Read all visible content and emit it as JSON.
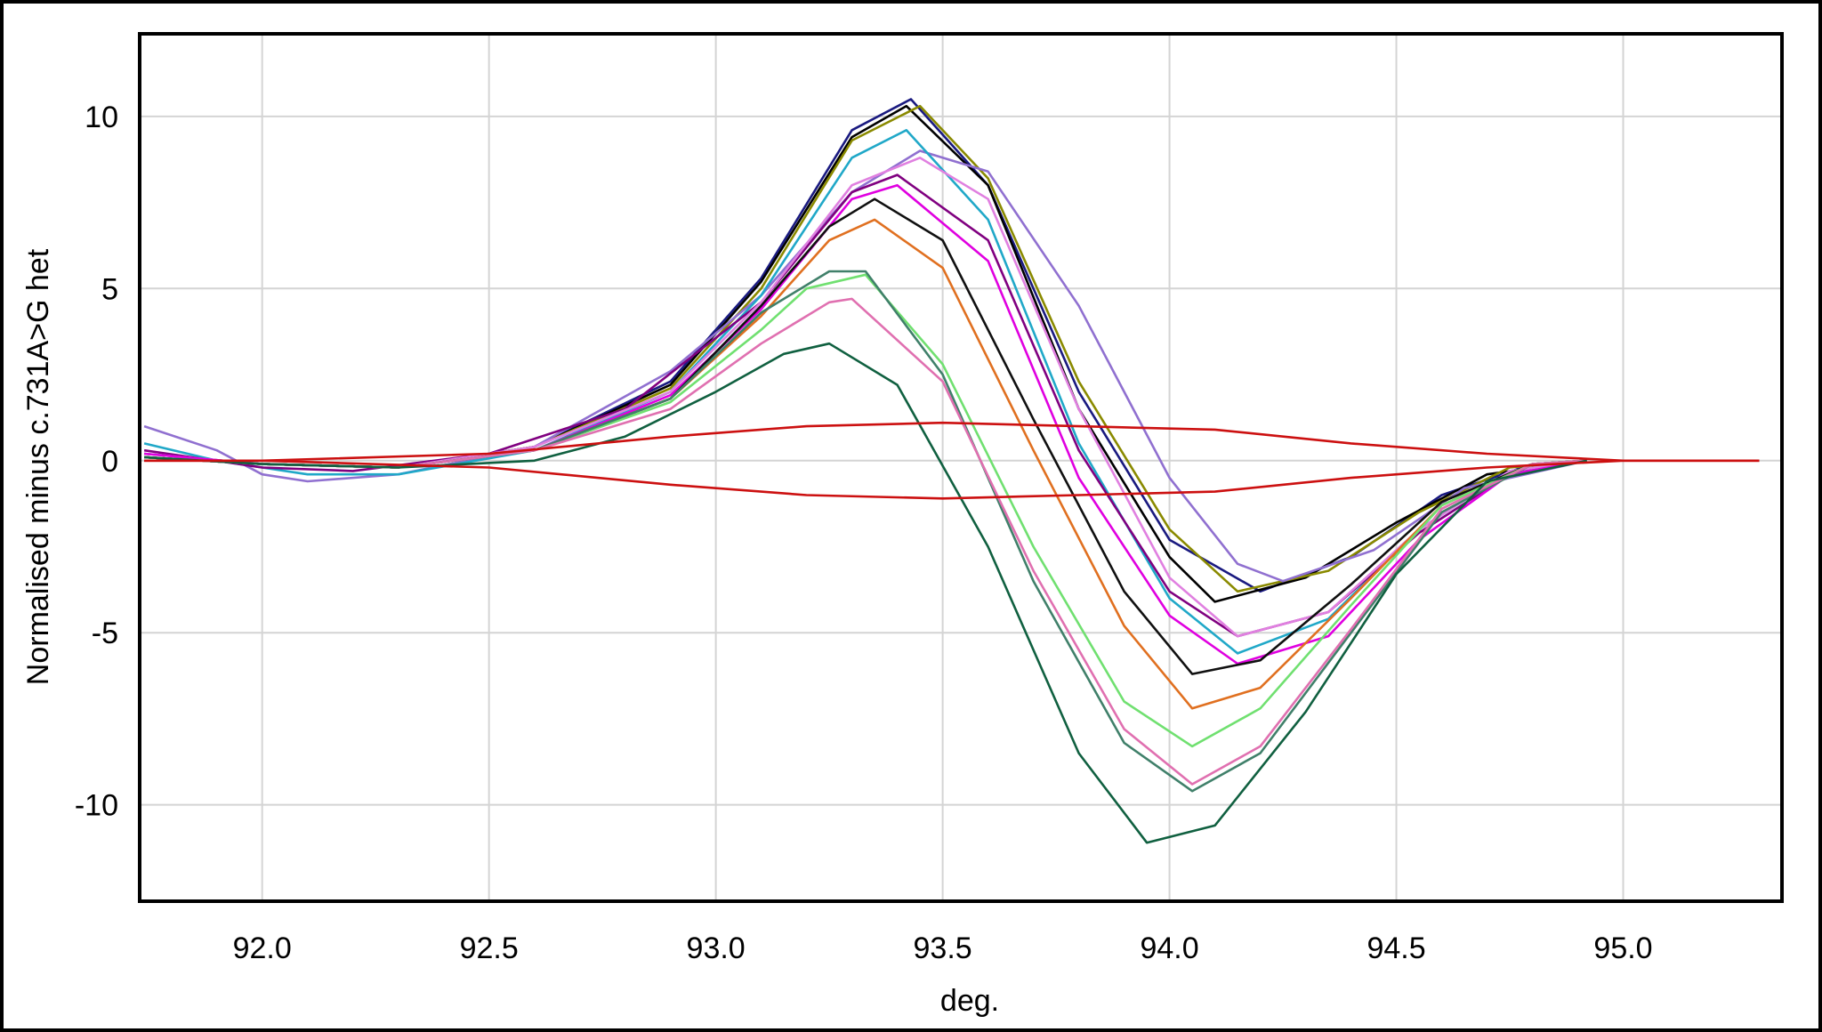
{
  "chart_data": {
    "type": "line",
    "xlabel": "deg.",
    "ylabel": "Normalised minus c.731A>G het",
    "xlim": [
      91.73,
      95.35
    ],
    "ylim": [
      -12.8,
      12.4
    ],
    "xticks": [
      92.0,
      92.5,
      93.0,
      93.5,
      94.0,
      94.5,
      95.0
    ],
    "xtick_labels": [
      "92.0",
      "92.5",
      "93.0",
      "93.5",
      "94.0",
      "94.5",
      "95.0"
    ],
    "yticks": [
      10,
      5,
      0,
      -5,
      -10
    ],
    "ytick_labels": [
      "10",
      "5",
      "0",
      "-5",
      "-10"
    ],
    "grid": true,
    "legend": "none",
    "series": [
      {
        "color": "#1a1a80",
        "points": [
          [
            91.74,
            0.2
          ],
          [
            92.0,
            -0.1
          ],
          [
            92.3,
            -0.2
          ],
          [
            92.6,
            0.4
          ],
          [
            92.9,
            2.3
          ],
          [
            93.1,
            5.3
          ],
          [
            93.3,
            9.6
          ],
          [
            93.43,
            10.5
          ],
          [
            93.6,
            8.0
          ],
          [
            93.8,
            2.0
          ],
          [
            94.0,
            -2.3
          ],
          [
            94.2,
            -3.8
          ],
          [
            94.4,
            -2.8
          ],
          [
            94.6,
            -1.0
          ],
          [
            94.8,
            -0.1
          ],
          [
            94.92,
            0.0
          ]
        ]
      },
      {
        "color": "#000000",
        "points": [
          [
            91.74,
            0.1
          ],
          [
            92.0,
            -0.1
          ],
          [
            92.3,
            -0.2
          ],
          [
            92.6,
            0.4
          ],
          [
            92.9,
            2.2
          ],
          [
            93.1,
            5.2
          ],
          [
            93.3,
            9.4
          ],
          [
            93.42,
            10.3
          ],
          [
            93.6,
            8.0
          ],
          [
            93.8,
            1.5
          ],
          [
            94.0,
            -2.8
          ],
          [
            94.1,
            -4.1
          ],
          [
            94.3,
            -3.4
          ],
          [
            94.5,
            -1.8
          ],
          [
            94.7,
            -0.4
          ],
          [
            94.92,
            0.0
          ]
        ]
      },
      {
        "color": "#8a8a00",
        "points": [
          [
            91.74,
            0.1
          ],
          [
            92.0,
            -0.1
          ],
          [
            92.3,
            -0.2
          ],
          [
            92.6,
            0.4
          ],
          [
            92.9,
            2.1
          ],
          [
            93.1,
            5.0
          ],
          [
            93.3,
            9.3
          ],
          [
            93.45,
            10.3
          ],
          [
            93.6,
            8.2
          ],
          [
            93.8,
            2.3
          ],
          [
            94.0,
            -2.0
          ],
          [
            94.15,
            -3.8
          ],
          [
            94.35,
            -3.2
          ],
          [
            94.55,
            -1.5
          ],
          [
            94.75,
            -0.2
          ],
          [
            94.92,
            0.0
          ]
        ]
      },
      {
        "color": "#9070d0",
        "points": [
          [
            91.74,
            1.0
          ],
          [
            91.9,
            0.3
          ],
          [
            92.0,
            -0.4
          ],
          [
            92.1,
            -0.6
          ],
          [
            92.3,
            -0.4
          ],
          [
            92.6,
            0.4
          ],
          [
            92.9,
            2.6
          ],
          [
            93.1,
            4.8
          ],
          [
            93.3,
            7.8
          ],
          [
            93.45,
            9.0
          ],
          [
            93.6,
            8.4
          ],
          [
            93.8,
            4.5
          ],
          [
            94.0,
            -0.5
          ],
          [
            94.15,
            -3.0
          ],
          [
            94.25,
            -3.5
          ],
          [
            94.45,
            -2.6
          ],
          [
            94.65,
            -0.8
          ],
          [
            94.92,
            0.0
          ]
        ]
      },
      {
        "color": "#20a8c8",
        "points": [
          [
            91.74,
            0.5
          ],
          [
            91.9,
            0.0
          ],
          [
            92.1,
            -0.4
          ],
          [
            92.3,
            -0.4
          ],
          [
            92.6,
            0.3
          ],
          [
            92.9,
            2.0
          ],
          [
            93.1,
            4.8
          ],
          [
            93.3,
            8.8
          ],
          [
            93.42,
            9.6
          ],
          [
            93.6,
            7.0
          ],
          [
            93.8,
            0.5
          ],
          [
            94.0,
            -4.0
          ],
          [
            94.15,
            -5.6
          ],
          [
            94.35,
            -4.6
          ],
          [
            94.55,
            -2.0
          ],
          [
            94.75,
            -0.3
          ],
          [
            94.92,
            0.0
          ]
        ]
      },
      {
        "color": "#800080",
        "points": [
          [
            91.74,
            0.3
          ],
          [
            92.0,
            -0.2
          ],
          [
            92.2,
            -0.3
          ],
          [
            92.5,
            0.2
          ],
          [
            92.8,
            1.5
          ],
          [
            93.1,
            4.6
          ],
          [
            93.3,
            7.8
          ],
          [
            93.4,
            8.3
          ],
          [
            93.6,
            6.4
          ],
          [
            93.8,
            0.3
          ],
          [
            94.0,
            -3.8
          ],
          [
            94.15,
            -5.1
          ],
          [
            94.35,
            -4.4
          ],
          [
            94.55,
            -2.1
          ],
          [
            94.75,
            -0.4
          ],
          [
            94.92,
            0.0
          ]
        ]
      },
      {
        "color": "#e080e0",
        "points": [
          [
            91.74,
            0.2
          ],
          [
            92.0,
            -0.1
          ],
          [
            92.3,
            -0.2
          ],
          [
            92.6,
            0.4
          ],
          [
            92.9,
            2.0
          ],
          [
            93.1,
            4.6
          ],
          [
            93.3,
            8.0
          ],
          [
            93.45,
            8.8
          ],
          [
            93.6,
            7.6
          ],
          [
            93.8,
            1.5
          ],
          [
            94.0,
            -3.4
          ],
          [
            94.15,
            -5.1
          ],
          [
            94.35,
            -4.4
          ],
          [
            94.55,
            -2.0
          ],
          [
            94.75,
            -0.3
          ],
          [
            94.92,
            0.0
          ]
        ]
      },
      {
        "color": "#e000e0",
        "points": [
          [
            91.74,
            0.2
          ],
          [
            92.0,
            -0.1
          ],
          [
            92.3,
            -0.2
          ],
          [
            92.6,
            0.3
          ],
          [
            92.9,
            1.9
          ],
          [
            93.1,
            4.4
          ],
          [
            93.3,
            7.6
          ],
          [
            93.4,
            8.0
          ],
          [
            93.6,
            5.8
          ],
          [
            93.8,
            -0.5
          ],
          [
            94.0,
            -4.5
          ],
          [
            94.15,
            -5.9
          ],
          [
            94.35,
            -5.1
          ],
          [
            94.55,
            -2.3
          ],
          [
            94.75,
            -0.4
          ],
          [
            94.92,
            0.0
          ]
        ]
      },
      {
        "color": "#101010",
        "points": [
          [
            91.74,
            0.1
          ],
          [
            92.0,
            -0.1
          ],
          [
            92.3,
            -0.2
          ],
          [
            92.6,
            0.3
          ],
          [
            92.9,
            1.8
          ],
          [
            93.1,
            4.5
          ],
          [
            93.25,
            6.8
          ],
          [
            93.35,
            7.6
          ],
          [
            93.5,
            6.4
          ],
          [
            93.7,
            1.2
          ],
          [
            93.9,
            -3.8
          ],
          [
            94.05,
            -6.2
          ],
          [
            94.2,
            -5.8
          ],
          [
            94.4,
            -3.6
          ],
          [
            94.6,
            -1.2
          ],
          [
            94.8,
            -0.1
          ],
          [
            94.92,
            0.0
          ]
        ]
      },
      {
        "color": "#e07020",
        "points": [
          [
            91.74,
            0.1
          ],
          [
            92.0,
            -0.1
          ],
          [
            92.3,
            -0.2
          ],
          [
            92.6,
            0.3
          ],
          [
            92.9,
            1.8
          ],
          [
            93.1,
            4.2
          ],
          [
            93.25,
            6.4
          ],
          [
            93.35,
            7.0
          ],
          [
            93.5,
            5.6
          ],
          [
            93.7,
            0.3
          ],
          [
            93.9,
            -4.8
          ],
          [
            94.05,
            -7.2
          ],
          [
            94.2,
            -6.6
          ],
          [
            94.4,
            -4.0
          ],
          [
            94.6,
            -1.3
          ],
          [
            94.8,
            -0.1
          ],
          [
            94.92,
            0.0
          ]
        ]
      },
      {
        "color": "#70e070",
        "points": [
          [
            91.74,
            0.1
          ],
          [
            92.0,
            -0.1
          ],
          [
            92.3,
            -0.2
          ],
          [
            92.6,
            0.3
          ],
          [
            92.9,
            1.7
          ],
          [
            93.1,
            3.8
          ],
          [
            93.2,
            5.0
          ],
          [
            93.33,
            5.4
          ],
          [
            93.5,
            2.8
          ],
          [
            93.7,
            -2.5
          ],
          [
            93.9,
            -7.0
          ],
          [
            94.05,
            -8.3
          ],
          [
            94.2,
            -7.2
          ],
          [
            94.4,
            -4.2
          ],
          [
            94.6,
            -1.3
          ],
          [
            94.8,
            -0.1
          ],
          [
            94.92,
            0.0
          ]
        ]
      },
      {
        "color": "#40806a",
        "points": [
          [
            91.74,
            0.1
          ],
          [
            92.0,
            -0.1
          ],
          [
            92.3,
            -0.2
          ],
          [
            92.6,
            0.3
          ],
          [
            92.9,
            1.8
          ],
          [
            93.1,
            4.3
          ],
          [
            93.25,
            5.5
          ],
          [
            93.33,
            5.5
          ],
          [
            93.5,
            2.5
          ],
          [
            93.7,
            -3.5
          ],
          [
            93.9,
            -8.2
          ],
          [
            94.05,
            -9.6
          ],
          [
            94.2,
            -8.5
          ],
          [
            94.4,
            -5.0
          ],
          [
            94.6,
            -1.5
          ],
          [
            94.8,
            -0.1
          ],
          [
            94.92,
            0.0
          ]
        ]
      },
      {
        "color": "#e070b0",
        "points": [
          [
            91.74,
            0.1
          ],
          [
            92.0,
            -0.1
          ],
          [
            92.3,
            -0.2
          ],
          [
            92.6,
            0.3
          ],
          [
            92.9,
            1.5
          ],
          [
            93.1,
            3.4
          ],
          [
            93.25,
            4.6
          ],
          [
            93.3,
            4.7
          ],
          [
            93.5,
            2.3
          ],
          [
            93.7,
            -3.2
          ],
          [
            93.9,
            -7.8
          ],
          [
            94.05,
            -9.4
          ],
          [
            94.2,
            -8.3
          ],
          [
            94.4,
            -4.9
          ],
          [
            94.6,
            -1.4
          ],
          [
            94.8,
            -0.1
          ],
          [
            94.92,
            0.0
          ]
        ]
      },
      {
        "color": "#106040",
        "points": [
          [
            91.74,
            0.1
          ],
          [
            92.0,
            -0.1
          ],
          [
            92.3,
            -0.2
          ],
          [
            92.6,
            0.0
          ],
          [
            92.8,
            0.7
          ],
          [
            93.0,
            2.0
          ],
          [
            93.15,
            3.1
          ],
          [
            93.25,
            3.4
          ],
          [
            93.4,
            2.2
          ],
          [
            93.6,
            -2.5
          ],
          [
            93.8,
            -8.5
          ],
          [
            93.95,
            -11.1
          ],
          [
            94.1,
            -10.6
          ],
          [
            94.3,
            -7.3
          ],
          [
            94.5,
            -3.3
          ],
          [
            94.7,
            -0.6
          ],
          [
            94.92,
            0.0
          ]
        ]
      },
      {
        "color": "#cc1010",
        "points": [
          [
            91.74,
            0.0
          ],
          [
            92.0,
            0.0
          ],
          [
            92.5,
            0.2
          ],
          [
            92.9,
            0.7
          ],
          [
            93.2,
            1.0
          ],
          [
            93.5,
            1.1
          ],
          [
            93.8,
            1.0
          ],
          [
            94.1,
            0.9
          ],
          [
            94.4,
            0.5
          ],
          [
            94.7,
            0.2
          ],
          [
            95.0,
            0.0
          ],
          [
            95.3,
            0.0
          ]
        ]
      },
      {
        "color": "#cc1010",
        "points": [
          [
            91.74,
            0.0
          ],
          [
            92.0,
            0.0
          ],
          [
            92.5,
            -0.2
          ],
          [
            92.9,
            -0.7
          ],
          [
            93.2,
            -1.0
          ],
          [
            93.5,
            -1.1
          ],
          [
            93.8,
            -1.0
          ],
          [
            94.1,
            -0.9
          ],
          [
            94.4,
            -0.5
          ],
          [
            94.7,
            -0.2
          ],
          [
            95.0,
            0.0
          ],
          [
            95.3,
            0.0
          ]
        ]
      }
    ]
  }
}
